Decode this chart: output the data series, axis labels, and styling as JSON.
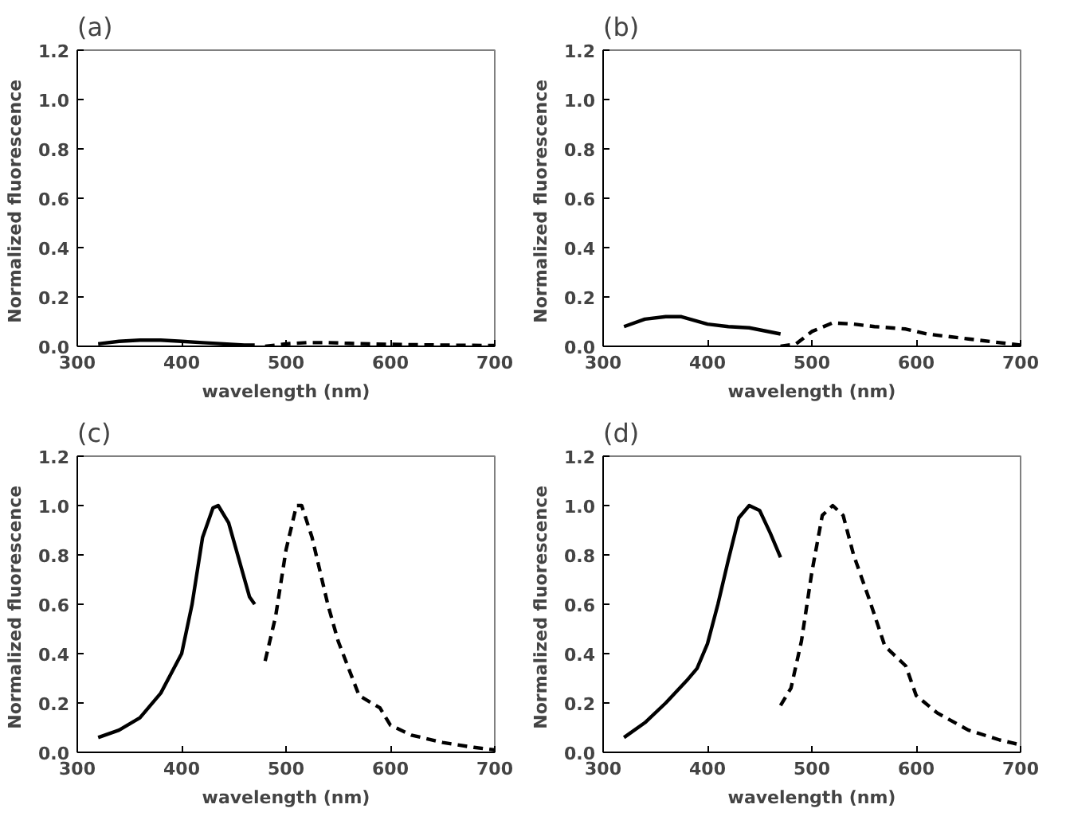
{
  "chart_data": [
    {
      "type": "line",
      "title": "(a)",
      "xlabel": "wavelength (nm)",
      "ylabel": "Normalized  fluorescence",
      "xlim": [
        300,
        700
      ],
      "xticks": [
        300,
        400,
        500,
        600,
        700
      ],
      "ylim": [
        0,
        1.2
      ],
      "yticks": [
        {
          "value": 0,
          "label": "0.0"
        },
        {
          "value": 0.2,
          "label": "0.2"
        },
        {
          "value": 0.4,
          "label": "0.4"
        },
        {
          "value": 0.6,
          "label": "0.6"
        },
        {
          "value": 0.8,
          "label": "0.8"
        },
        {
          "value": 1.0,
          "label": "1.0"
        },
        {
          "value": 1.2,
          "label": "1.2"
        }
      ],
      "grid": false,
      "series": [
        {
          "color": "#000000",
          "line_style": "solid",
          "x": [
            320,
            340,
            360,
            380,
            400,
            420,
            440,
            460,
            470
          ],
          "values": [
            0.01,
            0.02,
            0.025,
            0.025,
            0.02,
            0.015,
            0.01,
            0.005,
            0.005
          ]
        },
        {
          "color": "#000000",
          "line_style": "dashed",
          "x": [
            480,
            500,
            520,
            540,
            560,
            600,
            650,
            700
          ],
          "values": [
            0,
            0.01,
            0.015,
            0.015,
            0.012,
            0.008,
            0.005,
            0.003
          ]
        }
      ]
    },
    {
      "type": "line",
      "title": "(b)",
      "xlabel": "wavelength (nm)",
      "ylabel": "Normalized  fluorescence",
      "xlim": [
        300,
        700
      ],
      "xticks": [
        300,
        400,
        500,
        600,
        700
      ],
      "ylim": [
        0,
        1.2
      ],
      "yticks": [
        {
          "value": 0,
          "label": "0.0"
        },
        {
          "value": 0.2,
          "label": "0.2"
        },
        {
          "value": 0.4,
          "label": "0.4"
        },
        {
          "value": 0.6,
          "label": "0.6"
        },
        {
          "value": 0.8,
          "label": "0.8"
        },
        {
          "value": 1.0,
          "label": "1.0"
        },
        {
          "value": 1.2,
          "label": "1.2"
        }
      ],
      "grid": false,
      "series": [
        {
          "color": "#000000",
          "line_style": "solid",
          "x": [
            320,
            340,
            360,
            375,
            400,
            420,
            440,
            470
          ],
          "values": [
            0.08,
            0.11,
            0.12,
            0.12,
            0.09,
            0.08,
            0.075,
            0.05
          ]
        },
        {
          "color": "#000000",
          "line_style": "dashed",
          "x": [
            470,
            485,
            500,
            520,
            540,
            560,
            590,
            610,
            650,
            690,
            700
          ],
          "values": [
            0,
            0.01,
            0.06,
            0.095,
            0.09,
            0.08,
            0.07,
            0.05,
            0.03,
            0.01,
            0.005
          ]
        }
      ]
    },
    {
      "type": "line",
      "title": "(c)",
      "xlabel": "wavelength (nm)",
      "ylabel": "Normalized  fluorescence",
      "xlim": [
        300,
        700
      ],
      "xticks": [
        300,
        400,
        500,
        600,
        700
      ],
      "ylim": [
        0,
        1.2
      ],
      "yticks": [
        {
          "value": 0,
          "label": "0.0"
        },
        {
          "value": 0.2,
          "label": "0.2"
        },
        {
          "value": 0.4,
          "label": "0.4"
        },
        {
          "value": 0.6,
          "label": "0.6"
        },
        {
          "value": 0.8,
          "label": "0.8"
        },
        {
          "value": 1.0,
          "label": "1.0"
        },
        {
          "value": 1.2,
          "label": "1.2"
        }
      ],
      "grid": false,
      "series": [
        {
          "color": "#000000",
          "line_style": "solid",
          "x": [
            320,
            340,
            360,
            380,
            400,
            410,
            420,
            430,
            435,
            445,
            455,
            465,
            470
          ],
          "values": [
            0.06,
            0.09,
            0.14,
            0.24,
            0.4,
            0.6,
            0.87,
            0.99,
            1.0,
            0.93,
            0.78,
            0.63,
            0.6
          ]
        },
        {
          "color": "#000000",
          "line_style": "dashed",
          "x": [
            480,
            490,
            500,
            510,
            515,
            525,
            540,
            550,
            570,
            590,
            600,
            620,
            650,
            680,
            700
          ],
          "values": [
            0.37,
            0.55,
            0.82,
            1.0,
            1.0,
            0.87,
            0.6,
            0.45,
            0.23,
            0.18,
            0.11,
            0.07,
            0.04,
            0.02,
            0.01
          ]
        }
      ]
    },
    {
      "type": "line",
      "title": "(d)",
      "xlabel": "wavelength (nm)",
      "ylabel": "Normalized  fluorescence",
      "xlim": [
        300,
        700
      ],
      "xticks": [
        300,
        400,
        500,
        600,
        700
      ],
      "ylim": [
        0,
        1.2
      ],
      "yticks": [
        {
          "value": 0,
          "label": "0.0"
        },
        {
          "value": 0.2,
          "label": "0.2"
        },
        {
          "value": 0.4,
          "label": "0.4"
        },
        {
          "value": 0.6,
          "label": "0.6"
        },
        {
          "value": 0.8,
          "label": "0.8"
        },
        {
          "value": 1.0,
          "label": "1.0"
        },
        {
          "value": 1.2,
          "label": "1.2"
        }
      ],
      "grid": false,
      "series": [
        {
          "color": "#000000",
          "line_style": "solid",
          "x": [
            320,
            340,
            360,
            380,
            390,
            400,
            410,
            420,
            430,
            440,
            450,
            460,
            470
          ],
          "values": [
            0.06,
            0.12,
            0.2,
            0.29,
            0.34,
            0.44,
            0.6,
            0.78,
            0.95,
            1.0,
            0.98,
            0.89,
            0.79
          ]
        },
        {
          "color": "#000000",
          "line_style": "dashed",
          "x": [
            470,
            480,
            490,
            500,
            510,
            520,
            530,
            540,
            555,
            570,
            590,
            600,
            620,
            650,
            680,
            700
          ],
          "values": [
            0.19,
            0.26,
            0.45,
            0.73,
            0.96,
            1.0,
            0.96,
            0.8,
            0.62,
            0.43,
            0.35,
            0.23,
            0.16,
            0.09,
            0.05,
            0.03
          ]
        }
      ]
    }
  ]
}
